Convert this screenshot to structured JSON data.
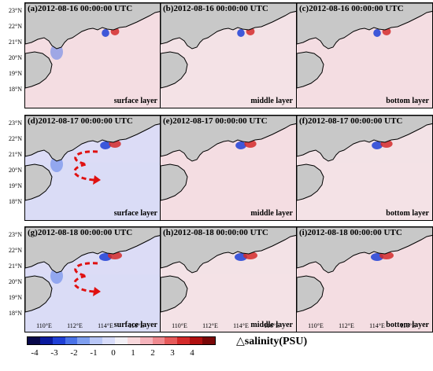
{
  "panels": [
    {
      "title": "(a)2012-08-16 00:00:00 UTC",
      "layer": "surface layer"
    },
    {
      "title": "(b)2012-08-16 00:00:00 UTC",
      "layer": "middle layer"
    },
    {
      "title": "(c)2012-08-16 00:00:00 UTC",
      "layer": "bottom layer"
    },
    {
      "title": "(d)2012-08-17 00:00:00 UTC",
      "layer": "surface layer"
    },
    {
      "title": "(e)2012-08-17 00:00:00 UTC",
      "layer": "middle layer"
    },
    {
      "title": "(f)2012-08-17 00:00:00 UTC",
      "layer": "bottom layer"
    },
    {
      "title": "(g)2012-08-18 00:00:00 UTC",
      "layer": "surface layer"
    },
    {
      "title": "(h)2012-08-18 00:00:00 UTC",
      "layer": "middle layer"
    },
    {
      "title": "(i)2012-08-18 00:00:00 UTC",
      "layer": "bottom layer"
    }
  ],
  "lat_labels": [
    "23°N",
    "22°N",
    "21°N",
    "20°N",
    "19°N",
    "18°N"
  ],
  "lon_labels": [
    "110°E",
    "112°E",
    "114°E",
    "116°E"
  ],
  "colorbar": {
    "title": "△salinity(PSU)",
    "ticks": [
      "-4",
      "-3",
      "-2",
      "-1",
      "0",
      "1",
      "2",
      "3",
      "4"
    ],
    "colors": [
      "#08084a",
      "#0a1a9e",
      "#1f3fd6",
      "#4a72e8",
      "#7f9ff0",
      "#b8c6f6",
      "#d8dcfa",
      "#f2f0f6",
      "#f8d8dc",
      "#f5b4bc",
      "#ef8a90",
      "#e65a5a",
      "#d42a2a",
      "#b01010",
      "#7a0808"
    ]
  },
  "colors": {
    "land": "#c8c8c8",
    "ocean_positive": "#f4dfe3",
    "ocean_negative": "#d8dcf6",
    "arrow": "#e01010",
    "fresh": "#1030d0",
    "salty": "#d01010"
  }
}
